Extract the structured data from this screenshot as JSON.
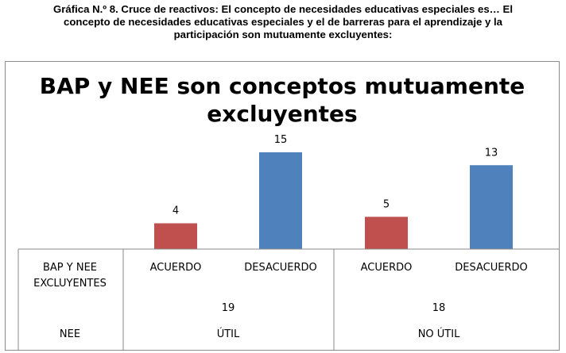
{
  "caption": {
    "lines": [
      "Gráfica N.º 8. Cruce de reactivos: El concepto de necesidades educativas especiales es… El",
      "concepto de necesidades educativas especiales y el de barreras para el aprendizaje y la",
      "participación son mutuamente excluyentes:"
    ]
  },
  "chart_data": {
    "type": "bar",
    "title_lines": [
      "BAP y NEE son conceptos mutuamente",
      "excluyentes"
    ],
    "categories": [
      "ACUERDO",
      "DESACUERDO",
      "ACUERDO",
      "DESACUERDO"
    ],
    "values": [
      4,
      15,
      5,
      13
    ],
    "bar_colors": [
      "#c0504d",
      "#4f81bd",
      "#c0504d",
      "#4f81bd"
    ],
    "ylim": [
      0,
      15
    ],
    "grid": false,
    "legend": "none",
    "table": {
      "row1_header": [
        "BAP Y NEE",
        "EXCLUYENTES"
      ],
      "group_totals": [
        "19",
        "18"
      ],
      "row2_header": "NEE",
      "groups": [
        "ÚTIL",
        "NO ÚTIL"
      ]
    }
  }
}
